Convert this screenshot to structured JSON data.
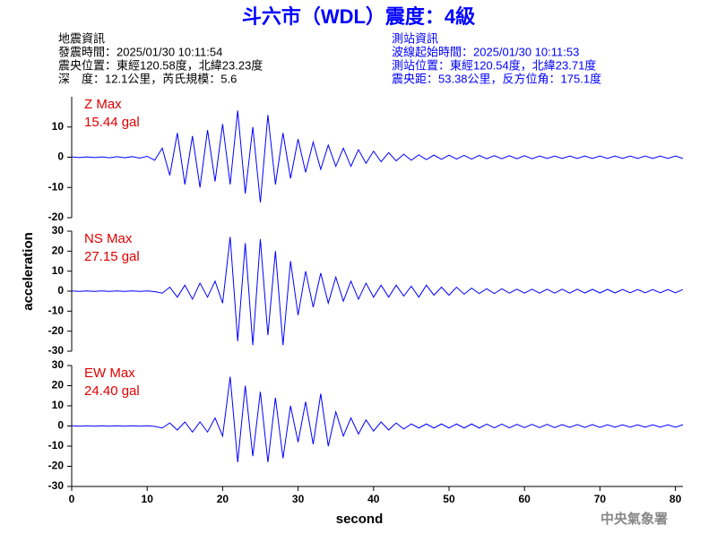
{
  "header": {
    "title": "斗六市（WDL）震度：4級",
    "left": [
      "地震資訊",
      "發震時間：2025/01/30 10:11:54",
      "震央位置：東經120.58度，北緯23.23度",
      "深　度：12.1公里，芮氏規模：5.6"
    ],
    "right": [
      "測站資訊",
      "波線起始時間：2025/01/30 10:11:53",
      "測站位置：東經120.54度，北緯23.71度",
      "震央距：53.38公里，反方位角：175.1度"
    ],
    "footer": "中央氣象署"
  },
  "chart_data": [
    {
      "type": "line",
      "annotations": [
        "Z Max",
        "15.44 gal"
      ],
      "xlim": [
        0,
        81
      ],
      "ylim": [
        -20,
        20
      ],
      "yticks": [
        -20,
        -10,
        0,
        10
      ],
      "x": [
        0,
        1,
        2,
        3,
        4,
        5,
        6,
        7,
        8,
        9,
        10,
        11,
        12,
        13,
        14,
        15,
        16,
        17,
        18,
        19,
        20,
        21,
        22,
        23,
        24,
        25,
        26,
        27,
        28,
        29,
        30,
        31,
        32,
        33,
        34,
        35,
        36,
        37,
        38,
        39,
        40,
        41,
        42,
        43,
        44,
        45,
        46,
        47,
        48,
        49,
        50,
        51,
        52,
        53,
        54,
        55,
        56,
        57,
        58,
        59,
        60,
        61,
        62,
        63,
        64,
        65,
        66,
        67,
        68,
        69,
        70,
        71,
        72,
        73,
        74,
        75,
        76,
        77,
        78,
        79,
        80,
        81
      ],
      "series": [
        {
          "color": "#0000ff",
          "values": [
            0.1,
            -0.1,
            0.1,
            -0.1,
            0.1,
            -0.2,
            0.2,
            -0.2,
            0.2,
            -0.3,
            0.3,
            -1,
            3,
            -6,
            8,
            -9,
            7,
            -10,
            9,
            -8,
            11,
            -9,
            15.44,
            -12,
            10,
            -15,
            14,
            -9,
            8,
            -7,
            6,
            -5,
            5,
            -4,
            4,
            -3,
            3,
            -3,
            2.5,
            -2,
            2,
            -1.5,
            1.5,
            -1.2,
            1,
            -1,
            0.8,
            -0.8,
            0.7,
            -0.7,
            0.7,
            -0.6,
            0.6,
            -0.6,
            0.6,
            -0.5,
            0.5,
            -0.5,
            0.5,
            -0.5,
            0.5,
            -0.5,
            0.4,
            -0.4,
            0.4,
            -0.4,
            0.4,
            -0.4,
            0.4,
            -0.4,
            0.4,
            -0.4,
            0.4,
            -0.4,
            0.4,
            -0.4,
            0.4,
            -0.4,
            0.4,
            -0.4,
            0.4,
            -0.4
          ]
        }
      ]
    },
    {
      "type": "line",
      "annotations": [
        "NS Max",
        "27.15 gal"
      ],
      "ylabel": "acceleration",
      "xlim": [
        0,
        81
      ],
      "ylim": [
        -30,
        30
      ],
      "yticks": [
        -30,
        -20,
        -10,
        0,
        10,
        20,
        30
      ],
      "x": [
        0,
        1,
        2,
        3,
        4,
        5,
        6,
        7,
        8,
        9,
        10,
        11,
        12,
        13,
        14,
        15,
        16,
        17,
        18,
        19,
        20,
        21,
        22,
        23,
        24,
        25,
        26,
        27,
        28,
        29,
        30,
        31,
        32,
        33,
        34,
        35,
        36,
        37,
        38,
        39,
        40,
        41,
        42,
        43,
        44,
        45,
        46,
        47,
        48,
        49,
        50,
        51,
        52,
        53,
        54,
        55,
        56,
        57,
        58,
        59,
        60,
        61,
        62,
        63,
        64,
        65,
        66,
        67,
        68,
        69,
        70,
        71,
        72,
        73,
        74,
        75,
        76,
        77,
        78,
        79,
        80,
        81
      ],
      "series": [
        {
          "color": "#0000ff",
          "values": [
            0.1,
            -0.1,
            0.1,
            -0.1,
            0.1,
            -0.1,
            0.1,
            -0.1,
            0.1,
            -0.1,
            0.1,
            -0.2,
            -1,
            2,
            -3,
            3,
            -4,
            4,
            -3,
            5,
            -6,
            27.15,
            -25,
            24,
            -27,
            26,
            -22,
            20,
            -27,
            15,
            -12,
            10,
            -8,
            9,
            -6,
            7,
            -5,
            5,
            -4,
            4,
            -3,
            3,
            -3,
            3,
            -2.5,
            2.5,
            -3,
            3,
            -2,
            2,
            -2,
            2,
            -1.5,
            1.5,
            -1.2,
            1.2,
            -1.2,
            1.2,
            -1,
            1,
            -1,
            1,
            -1,
            1,
            -1,
            1,
            -1,
            1,
            -0.9,
            0.9,
            -0.9,
            0.9,
            -0.9,
            0.9,
            -0.8,
            0.8,
            -0.8,
            0.8,
            -0.8,
            0.8,
            -0.8,
            0.8
          ]
        }
      ]
    },
    {
      "type": "line",
      "annotations": [
        "EW Max",
        "24.40 gal"
      ],
      "xlabel": "second",
      "xlim": [
        0,
        81
      ],
      "ylim": [
        -30,
        30
      ],
      "yticks": [
        -30,
        -20,
        -10,
        0,
        10,
        20,
        30
      ],
      "xticks": [
        0,
        10,
        20,
        30,
        40,
        50,
        60,
        70,
        80
      ],
      "x": [
        0,
        1,
        2,
        3,
        4,
        5,
        6,
        7,
        8,
        9,
        10,
        11,
        12,
        13,
        14,
        15,
        16,
        17,
        18,
        19,
        20,
        21,
        22,
        23,
        24,
        25,
        26,
        27,
        28,
        29,
        30,
        31,
        32,
        33,
        34,
        35,
        36,
        37,
        38,
        39,
        40,
        41,
        42,
        43,
        44,
        45,
        46,
        47,
        48,
        49,
        50,
        51,
        52,
        53,
        54,
        55,
        56,
        57,
        58,
        59,
        60,
        61,
        62,
        63,
        64,
        65,
        66,
        67,
        68,
        69,
        70,
        71,
        72,
        73,
        74,
        75,
        76,
        77,
        78,
        79,
        80,
        81
      ],
      "series": [
        {
          "color": "#0000ff",
          "values": [
            0.1,
            -0.1,
            0.1,
            -0.1,
            0.1,
            -0.1,
            0.1,
            -0.1,
            0.1,
            -0.1,
            0.1,
            -0.2,
            -1,
            1.5,
            -2,
            2,
            -3,
            2,
            -3,
            4,
            -5,
            24.4,
            -18,
            20,
            -15,
            17,
            -18,
            14,
            -16,
            10,
            -8,
            12,
            -9,
            16,
            -10,
            7,
            -5,
            4,
            -4,
            3,
            -2.5,
            2,
            -2,
            1.5,
            -1.5,
            1,
            -1,
            1,
            -1,
            1,
            -1,
            1,
            -1,
            1,
            -1,
            0.9,
            -0.9,
            0.9,
            -0.9,
            0.8,
            -0.8,
            0.8,
            -0.8,
            0.8,
            -0.8,
            0.7,
            -0.7,
            0.7,
            -0.7,
            0.7,
            -0.7,
            0.6,
            -0.6,
            0.6,
            -0.6,
            0.6,
            -0.6,
            0.6,
            -0.6,
            0.6,
            -0.6,
            0.6
          ]
        }
      ]
    }
  ]
}
